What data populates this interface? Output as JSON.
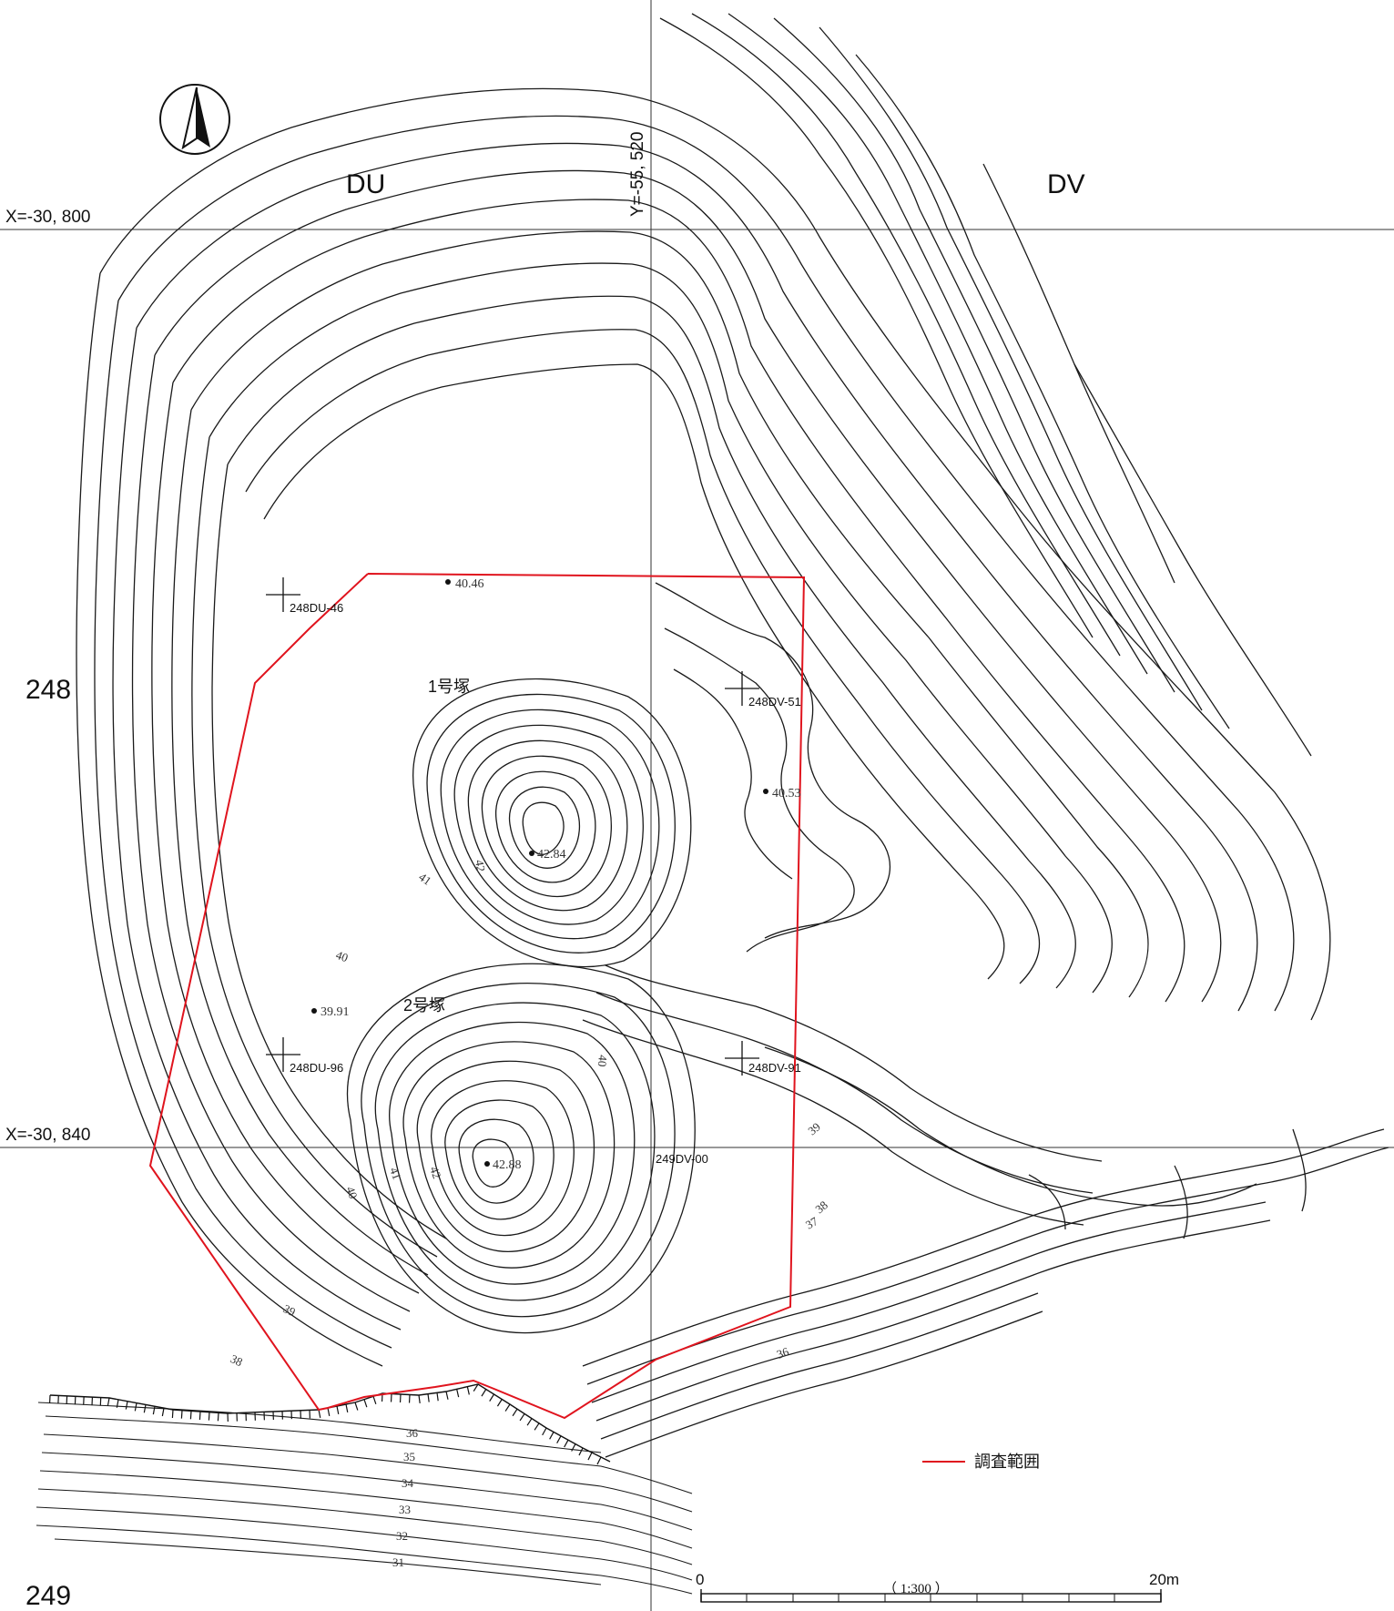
{
  "grid": {
    "zones": [
      "DU",
      "DV"
    ],
    "rows": [
      "248",
      "249"
    ],
    "x_lines": [
      "X=-30, 800",
      "X=-30, 840"
    ],
    "y_line": "Y=-55, 520"
  },
  "mounds": [
    {
      "label": "1号塚",
      "peak": "42.84"
    },
    {
      "label": "2号塚",
      "peak": "42.88"
    }
  ],
  "spot_heights": [
    "40.46",
    "40.53",
    "39.91"
  ],
  "grid_points": [
    "248DU-46",
    "248DV-51",
    "248DU-96",
    "248DV-91",
    "249DV-00"
  ],
  "contour_labels": [
    "42",
    "41",
    "40",
    "40",
    "41",
    "42",
    "40",
    "39",
    "38",
    "37",
    "36",
    "39",
    "38",
    "36",
    "35",
    "34",
    "33",
    "32",
    "31"
  ],
  "legend": {
    "survey_area": "調査範囲",
    "survey_area_color": "#e0141e"
  },
  "scale": {
    "start": "0",
    "end": "20m",
    "ratio": "（ 1:300 ）"
  },
  "north_arrow": "north-arrow-icon"
}
